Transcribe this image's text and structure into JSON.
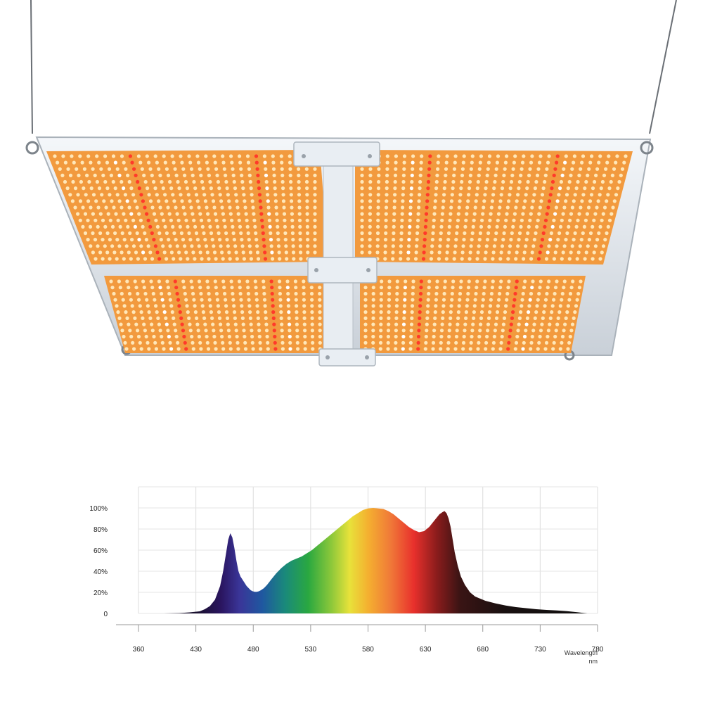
{
  "product": {
    "icon": "led-grow-light-panel-icon",
    "led_colors": {
      "board": "#f29a3e",
      "warm": "#ffe7b8",
      "red": "#ff3a2a",
      "white": "#ffffff",
      "frame": "#e4e9ee"
    }
  },
  "chart_data": {
    "type": "area",
    "title": "",
    "xlabel": "Wavelength",
    "xlabel_unit": "nm",
    "ylabel": "",
    "x_ticks": [
      "360",
      "430",
      "480",
      "530",
      "580",
      "630",
      "680",
      "730",
      "780"
    ],
    "y_ticks": [
      "0",
      "20%",
      "40%",
      "60%",
      "80%",
      "100%"
    ],
    "xlim": [
      360,
      810
    ],
    "ylim": [
      0,
      110
    ],
    "grid": true,
    "legend": "none",
    "series": [
      {
        "x": [
          385,
          400,
          410,
          420,
          425,
          430,
          435,
          440,
          443,
          446,
          448,
          450,
          452,
          454,
          456,
          458,
          460,
          462,
          464,
          466,
          468,
          470,
          472,
          474,
          476,
          478,
          480,
          483,
          486,
          490,
          495,
          500,
          505,
          510,
          515,
          520,
          525,
          530,
          535,
          540,
          545,
          550,
          555,
          560,
          565,
          570,
          575,
          580,
          585,
          590,
          595,
          600,
          605,
          610,
          615,
          620,
          625,
          630,
          635,
          640,
          645,
          650,
          655,
          658,
          660,
          662,
          664,
          666,
          668,
          670,
          673,
          676,
          680,
          685,
          690,
          700,
          710,
          720,
          730,
          740,
          750,
          760,
          770,
          780,
          790,
          800
        ],
        "values": [
          0,
          0.3,
          1,
          2,
          4,
          7,
          13,
          26,
          40,
          58,
          70,
          76,
          72,
          62,
          50,
          40,
          35,
          32,
          29,
          26,
          24,
          22,
          21,
          20.5,
          20.5,
          21,
          22,
          24,
          27,
          32,
          38,
          43,
          47,
          50,
          52,
          54,
          57,
          60,
          64,
          68,
          72,
          76,
          80,
          84,
          88,
          92,
          95,
          98,
          99.5,
          100,
          99.5,
          99,
          97,
          94,
          90,
          86,
          82,
          79,
          77,
          78,
          82,
          88,
          94,
          96,
          97,
          95,
          90,
          82,
          70,
          58,
          45,
          35,
          27,
          20,
          16,
          12,
          9.5,
          7.5,
          6,
          5,
          4,
          3.3,
          2.8,
          2.2,
          1.2,
          0
        ]
      }
    ]
  }
}
